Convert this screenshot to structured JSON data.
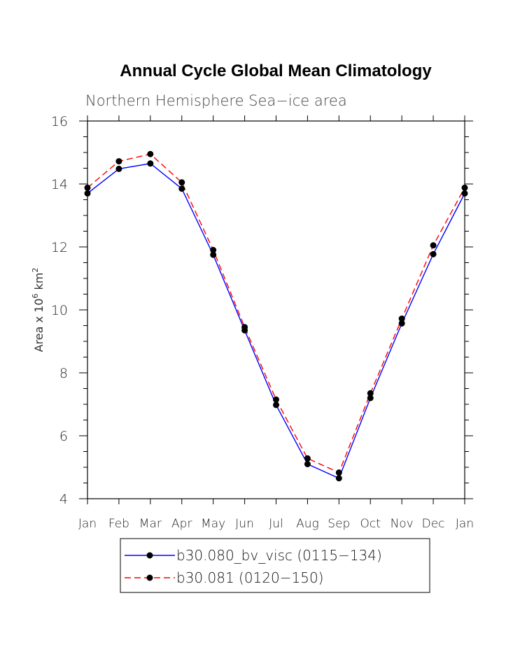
{
  "chart_data": {
    "type": "line",
    "title": "Annual Cycle Global Mean Climatology",
    "subtitle": "Northern Hemisphere Sea−ice area",
    "ylabel_prefix": "Area x 10",
    "ylabel_exp": "6",
    "ylabel_unit": " km",
    "ylabel_unit_exp": "2",
    "xlabel": "",
    "categories": [
      "Jan",
      "Feb",
      "Mar",
      "Apr",
      "May",
      "Jun",
      "Jul",
      "Aug",
      "Sep",
      "Oct",
      "Nov",
      "Dec",
      "Jan"
    ],
    "ylim": [
      4,
      16
    ],
    "yticks": [
      "4",
      "6",
      "8",
      "10",
      "12",
      "14",
      "16"
    ],
    "grid": false,
    "series": [
      {
        "name": "b30.080_bv_visc (0115−134)",
        "color": "#0000ff",
        "dash": "solid",
        "values": [
          13.7,
          14.48,
          14.65,
          13.85,
          11.75,
          9.35,
          6.98,
          5.1,
          4.65,
          7.2,
          9.57,
          11.77,
          13.7
        ]
      },
      {
        "name": "b30.081 (0120−150)",
        "color": "#ff0000",
        "dash": "dashed",
        "values": [
          13.88,
          14.72,
          14.95,
          14.05,
          11.9,
          9.45,
          7.15,
          5.28,
          4.83,
          7.35,
          9.72,
          12.05,
          13.88
        ]
      }
    ],
    "legend_position": "bottom"
  }
}
